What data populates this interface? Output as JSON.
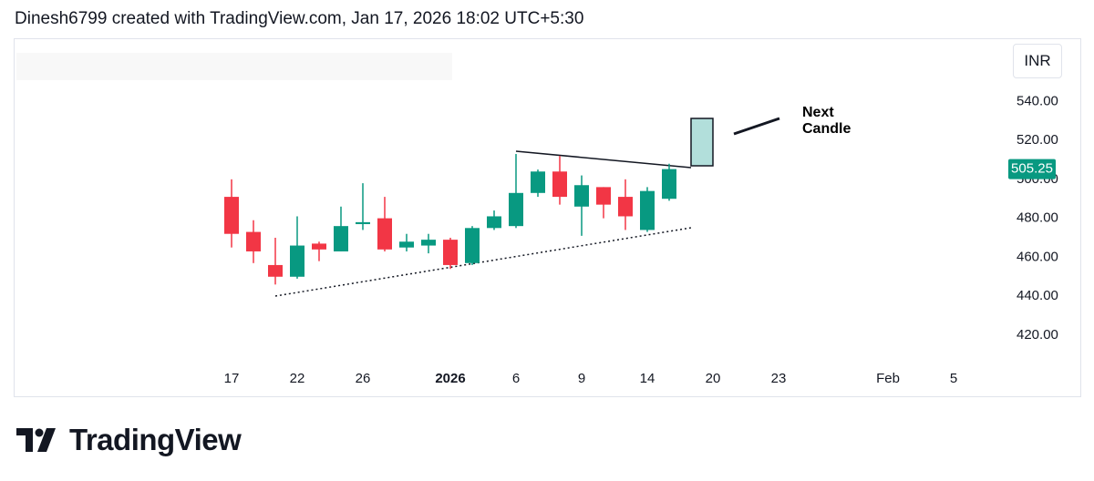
{
  "header": {
    "credit": "Dinesh6799 created with TradingView.com, Jan 17, 2026 18:02 UTC+5:30"
  },
  "currency_button": "INR",
  "footer": {
    "brand": "TradingView"
  },
  "chart_data": {
    "type": "candlestick",
    "categories": [
      "17",
      null,
      null,
      "22",
      null,
      null,
      "26",
      null,
      null,
      null,
      "2026",
      null,
      null,
      "6",
      null,
      null,
      "9",
      null,
      null,
      "14",
      null,
      null,
      "20",
      null,
      null,
      "23",
      null,
      null,
      null,
      null,
      "Feb",
      null,
      null,
      "5"
    ],
    "open": [
      491,
      473,
      456,
      450,
      467,
      463,
      477,
      480,
      465,
      466,
      469,
      457,
      475,
      476,
      493,
      504,
      486,
      496,
      491,
      474,
      490,
      null,
      null,
      null,
      null,
      null,
      null,
      null,
      null,
      null,
      null,
      null,
      null,
      null
    ],
    "high": [
      500,
      479,
      470,
      481,
      468,
      486,
      498,
      491,
      472,
      472,
      470,
      476,
      484,
      513,
      505,
      512,
      502,
      496,
      500,
      496,
      508,
      null,
      null,
      null,
      null,
      null,
      null,
      null,
      null,
      null,
      null,
      null,
      null,
      null
    ],
    "low": [
      465,
      457,
      446,
      449,
      458,
      463,
      474,
      463,
      463,
      462,
      454,
      456,
      474,
      475,
      491,
      487,
      471,
      480,
      474,
      473,
      489,
      null,
      null,
      null,
      null,
      null,
      null,
      null,
      null,
      null,
      null,
      null,
      null,
      null
    ],
    "close": [
      472,
      463,
      450,
      466,
      464,
      476,
      478,
      464,
      468,
      469,
      456,
      475,
      481,
      493,
      504,
      491,
      497,
      487,
      481,
      494,
      505.25,
      null,
      null,
      null,
      null,
      null,
      null,
      null,
      null,
      null,
      null,
      null,
      null,
      null
    ],
    "up_color": "#089981",
    "down_color": "#f23645",
    "last_price": 505.25,
    "ylim": [
      405,
      571
    ],
    "yticks": [
      {
        "value": 420,
        "label": "420.00"
      },
      {
        "value": 440,
        "label": "440.00"
      },
      {
        "value": 460,
        "label": "460.00"
      },
      {
        "value": 480,
        "label": "480.00"
      },
      {
        "value": 500,
        "label": "500.00"
      },
      {
        "value": 520,
        "label": "520.00"
      },
      {
        "value": 540,
        "label": "540.00"
      }
    ],
    "annotations": [
      {
        "text": "Next"
      },
      {
        "text": "Candle"
      }
    ]
  }
}
